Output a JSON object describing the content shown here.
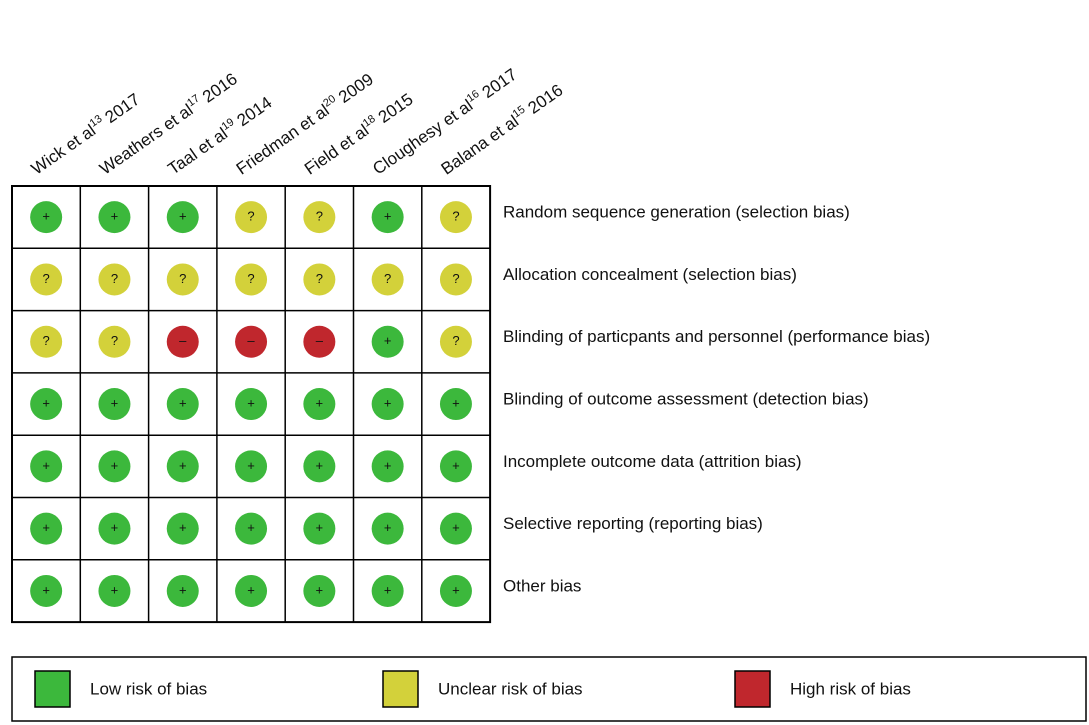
{
  "studies": [
    {
      "name": "Wick et al",
      "ref": "13",
      "year": "2017"
    },
    {
      "name": "Weathers et al",
      "ref": "17",
      "year": "2016"
    },
    {
      "name": "Taal et al",
      "ref": "19",
      "year": "2014"
    },
    {
      "name": "Friedman et al",
      "ref": "20",
      "year": "2009"
    },
    {
      "name": "Field et al",
      "ref": "18",
      "year": "2015"
    },
    {
      "name": "Cloughesy et al",
      "ref": "16",
      "year": "2017"
    },
    {
      "name": "Balana et al",
      "ref": "15",
      "year": "2016"
    }
  ],
  "domains": [
    "Random sequence generation (selection bias)",
    "Allocation concealment (selection bias)",
    "Blinding of particpants and personnel (performance bias)",
    "Blinding of outcome assessment (detection bias)",
    "Incomplete outcome data (attrition bias)",
    "Selective reporting (reporting bias)",
    "Other bias"
  ],
  "judgments": [
    [
      "+",
      "+",
      "+",
      "?",
      "?",
      "+",
      "?"
    ],
    [
      "?",
      "?",
      "?",
      "?",
      "?",
      "?",
      "?"
    ],
    [
      "?",
      "?",
      "–",
      "–",
      "–",
      "+",
      "?"
    ],
    [
      "+",
      "+",
      "+",
      "+",
      "+",
      "+",
      "+"
    ],
    [
      "+",
      "+",
      "+",
      "+",
      "+",
      "+",
      "+"
    ],
    [
      "+",
      "+",
      "+",
      "+",
      "+",
      "+",
      "+"
    ],
    [
      "+",
      "+",
      "+",
      "+",
      "+",
      "+",
      "+"
    ]
  ],
  "legend": [
    {
      "label": "Low risk of bias",
      "color": "#3cb83c",
      "symbol": "+"
    },
    {
      "label": "Unclear risk of bias",
      "color": "#d3d13a",
      "symbol": "?"
    },
    {
      "label": "High risk of bias",
      "color": "#c0272d",
      "symbol": "–"
    }
  ]
}
